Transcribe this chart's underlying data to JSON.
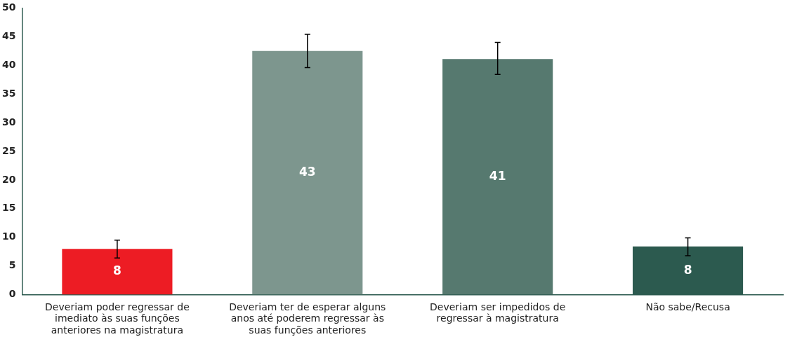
{
  "chart_data": {
    "type": "bar",
    "categories": [
      "Deveriam poder regressar de imediato às suas funções anteriores na magistratura",
      "Deveriam ter de esperar alguns anos até poderem regressar às suas funções anteriores",
      "Deveriam ser impedidos de regressar à magistratura",
      "Não sabe/Recusa"
    ],
    "values": [
      8,
      42.5,
      41.1,
      8.4
    ],
    "colors": [
      "#ed1c24",
      "#7d968e",
      "#56796f",
      "#2c5a4f"
    ],
    "errors": [
      [
        6.4,
        9.5
      ],
      [
        39.6,
        45.4
      ],
      [
        38.4,
        44.0
      ],
      [
        6.8,
        9.9
      ]
    ],
    "value_labels": [
      "8",
      "43",
      "41",
      "8"
    ],
    "ylim": [
      0,
      50
    ],
    "yticks": [
      0,
      5,
      10,
      15,
      20,
      25,
      30,
      35,
      40,
      45,
      50
    ],
    "grid": false,
    "legend": false
  }
}
